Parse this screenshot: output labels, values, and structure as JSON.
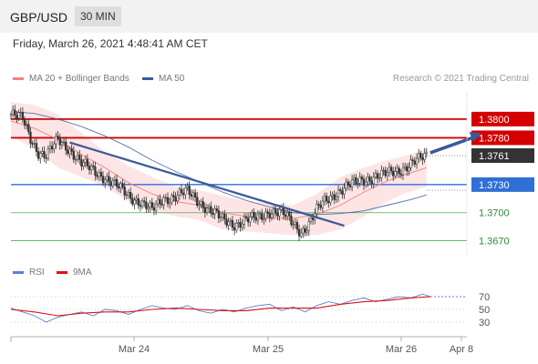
{
  "header": {
    "symbol": "GBP/USD",
    "timeframe": "30 MIN"
  },
  "timestamp": "Friday, March 26, 2021 4:48:41 AM CET",
  "legend_main": [
    {
      "label": "MA 20 + Bollinger Bands",
      "color": "#f08080"
    },
    {
      "label": "MA 50",
      "color": "#3b5998"
    }
  ],
  "copyright": "Research © 2021 Trading Central",
  "legend_rsi": [
    {
      "label": "RSI",
      "color": "#5b7fd6"
    },
    {
      "label": "9MA",
      "color": "#e01010"
    }
  ],
  "colors": {
    "resistance": "#d40000",
    "pivot": "#2f6fd6",
    "support": "#4caf50",
    "price": "#333333",
    "band": "#fde0e0"
  },
  "chart_data": [
    {
      "type": "candlestick",
      "x_ticks": [
        "Mar 24",
        "Mar 25",
        "Mar 26",
        "Apr 8"
      ],
      "levels": [
        {
          "value": 1.38,
          "label": "1.3800",
          "kind": "resistance"
        },
        {
          "value": 1.378,
          "label": "1.3780",
          "kind": "resistance"
        },
        {
          "value": 1.3761,
          "label": "1.3761",
          "kind": "price"
        },
        {
          "value": 1.373,
          "label": "1.3730",
          "kind": "pivot"
        },
        {
          "value": 1.37,
          "label": "1.3700",
          "kind": "support"
        },
        {
          "value": 1.367,
          "label": "1.3670",
          "kind": "support"
        }
      ],
      "close_path": [
        [
          0,
          1.3805
        ],
        [
          6,
          1.38
        ],
        [
          10,
          1.378
        ],
        [
          14,
          1.3765
        ],
        [
          18,
          1.376
        ],
        [
          24,
          1.3778
        ],
        [
          30,
          1.3768
        ],
        [
          36,
          1.3752
        ],
        [
          42,
          1.3745
        ],
        [
          48,
          1.3738
        ],
        [
          54,
          1.3728
        ],
        [
          60,
          1.3718
        ],
        [
          66,
          1.3712
        ],
        [
          72,
          1.3702
        ],
        [
          78,
          1.3715
        ],
        [
          84,
          1.3718
        ],
        [
          90,
          1.3722
        ],
        [
          96,
          1.3712
        ],
        [
          102,
          1.3702
        ],
        [
          108,
          1.3692
        ],
        [
          114,
          1.3688
        ],
        [
          120,
          1.3692
        ],
        [
          126,
          1.3694
        ],
        [
          132,
          1.3702
        ],
        [
          138,
          1.37
        ],
        [
          144,
          1.3688
        ],
        [
          148,
          1.368
        ],
        [
          152,
          1.3688
        ],
        [
          156,
          1.3702
        ],
        [
          160,
          1.3712
        ],
        [
          166,
          1.3722
        ],
        [
          172,
          1.3728
        ],
        [
          178,
          1.3734
        ],
        [
          184,
          1.3738
        ],
        [
          190,
          1.374
        ],
        [
          196,
          1.3744
        ],
        [
          202,
          1.375
        ],
        [
          208,
          1.3756
        ],
        [
          212,
          1.3761
        ]
      ],
      "ma20": [
        [
          0,
          1.3798
        ],
        [
          12,
          1.379
        ],
        [
          24,
          1.3778
        ],
        [
          36,
          1.3762
        ],
        [
          48,
          1.3748
        ],
        [
          60,
          1.3732
        ],
        [
          72,
          1.372
        ],
        [
          84,
          1.3712
        ],
        [
          96,
          1.3708
        ],
        [
          108,
          1.37
        ],
        [
          120,
          1.3696
        ],
        [
          132,
          1.3694
        ],
        [
          144,
          1.3694
        ],
        [
          156,
          1.3698
        ],
        [
          168,
          1.3708
        ],
        [
          180,
          1.3722
        ],
        [
          192,
          1.3734
        ],
        [
          200,
          1.374
        ],
        [
          212,
          1.3748
        ]
      ],
      "boll_upper": [
        [
          0,
          1.3818
        ],
        [
          12,
          1.3815
        ],
        [
          24,
          1.3805
        ],
        [
          36,
          1.3785
        ],
        [
          48,
          1.3765
        ],
        [
          60,
          1.375
        ],
        [
          72,
          1.3738
        ],
        [
          84,
          1.3728
        ],
        [
          96,
          1.3724
        ],
        [
          108,
          1.3718
        ],
        [
          120,
          1.3712
        ],
        [
          132,
          1.371
        ],
        [
          144,
          1.3708
        ],
        [
          156,
          1.372
        ],
        [
          168,
          1.3738
        ],
        [
          180,
          1.3748
        ],
        [
          192,
          1.3756
        ],
        [
          200,
          1.376
        ],
        [
          212,
          1.3768
        ]
      ],
      "boll_lower": [
        [
          0,
          1.3782
        ],
        [
          12,
          1.3768
        ],
        [
          24,
          1.3748
        ],
        [
          36,
          1.3738
        ],
        [
          48,
          1.3728
        ],
        [
          60,
          1.3712
        ],
        [
          72,
          1.3702
        ],
        [
          84,
          1.3696
        ],
        [
          96,
          1.3692
        ],
        [
          108,
          1.3682
        ],
        [
          120,
          1.368
        ],
        [
          132,
          1.3678
        ],
        [
          144,
          1.3676
        ],
        [
          156,
          1.3676
        ],
        [
          168,
          1.3682
        ],
        [
          180,
          1.3696
        ],
        [
          192,
          1.3712
        ],
        [
          200,
          1.372
        ],
        [
          212,
          1.3728
        ]
      ],
      "ma50": [
        [
          0,
          1.3808
        ],
        [
          12,
          1.3806
        ],
        [
          24,
          1.38
        ],
        [
          36,
          1.3792
        ],
        [
          48,
          1.3782
        ],
        [
          60,
          1.377
        ],
        [
          72,
          1.3756
        ],
        [
          84,
          1.3744
        ],
        [
          96,
          1.3733
        ],
        [
          108,
          1.3722
        ],
        [
          120,
          1.3713
        ],
        [
          132,
          1.3706
        ],
        [
          144,
          1.37
        ],
        [
          156,
          1.3698
        ],
        [
          168,
          1.3699
        ],
        [
          180,
          1.3702
        ],
        [
          192,
          1.3708
        ],
        [
          204,
          1.3714
        ],
        [
          212,
          1.3719
        ]
      ],
      "trendline": [
        [
          30,
          1.3775
        ],
        [
          170,
          1.3686
        ]
      ],
      "projection": [
        [
          212,
          1.3762
        ],
        [
          240,
          1.3785
        ]
      ],
      "ylim": [
        1.3655,
        1.383
      ]
    },
    {
      "type": "line",
      "levels": [
        70,
        50,
        30
      ],
      "rsi": [
        [
          0,
          52
        ],
        [
          6,
          46
        ],
        [
          12,
          40
        ],
        [
          18,
          30
        ],
        [
          24,
          38
        ],
        [
          30,
          42
        ],
        [
          36,
          46
        ],
        [
          42,
          40
        ],
        [
          48,
          50
        ],
        [
          54,
          48
        ],
        [
          60,
          42
        ],
        [
          66,
          50
        ],
        [
          72,
          56
        ],
        [
          78,
          52
        ],
        [
          84,
          50
        ],
        [
          90,
          56
        ],
        [
          96,
          48
        ],
        [
          102,
          44
        ],
        [
          108,
          50
        ],
        [
          114,
          46
        ],
        [
          120,
          52
        ],
        [
          126,
          56
        ],
        [
          132,
          58
        ],
        [
          138,
          48
        ],
        [
          144,
          54
        ],
        [
          150,
          46
        ],
        [
          156,
          56
        ],
        [
          162,
          62
        ],
        [
          168,
          58
        ],
        [
          174,
          64
        ],
        [
          180,
          68
        ],
        [
          186,
          62
        ],
        [
          192,
          66
        ],
        [
          198,
          70
        ],
        [
          204,
          68
        ],
        [
          210,
          74
        ],
        [
          214,
          70
        ]
      ],
      "ma9": [
        [
          0,
          50
        ],
        [
          12,
          46
        ],
        [
          24,
          40
        ],
        [
          36,
          44
        ],
        [
          48,
          46
        ],
        [
          60,
          46
        ],
        [
          72,
          50
        ],
        [
          84,
          52
        ],
        [
          96,
          50
        ],
        [
          108,
          48
        ],
        [
          120,
          48
        ],
        [
          132,
          52
        ],
        [
          144,
          52
        ],
        [
          156,
          52
        ],
        [
          168,
          58
        ],
        [
          180,
          62
        ],
        [
          192,
          64
        ],
        [
          204,
          68
        ],
        [
          214,
          70
        ]
      ],
      "ylim": [
        10,
        90
      ]
    }
  ]
}
